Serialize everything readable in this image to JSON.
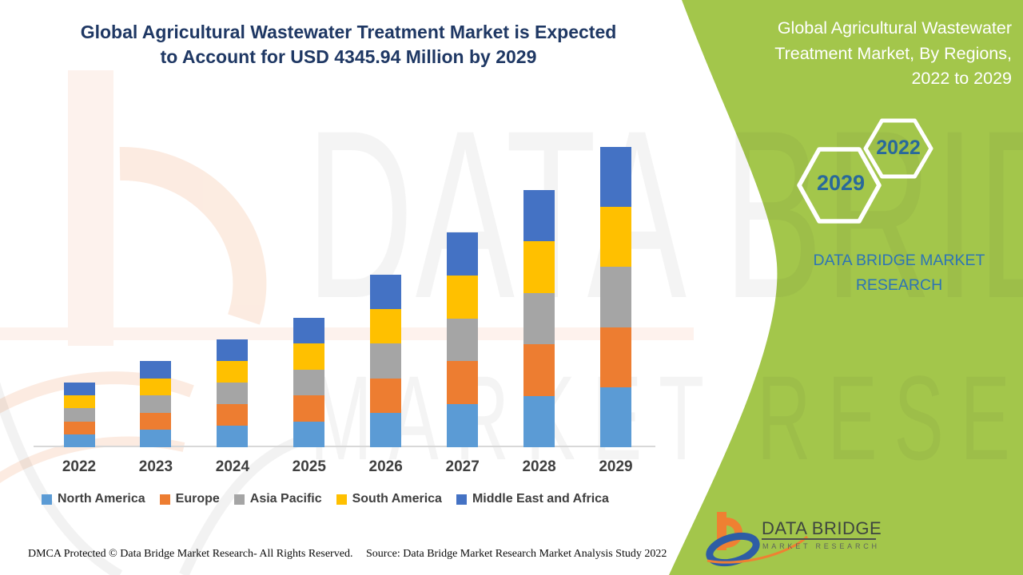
{
  "title": {
    "line1": "Global Agricultural Wastewater Treatment Market is Expected",
    "line2": "to Account for USD 4345.94 Million by 2029"
  },
  "watermark": {
    "line1": "DATA BRIDGE",
    "line2": "MARKET RESEARCH"
  },
  "side_panel": {
    "heading_line1": "Global Agricultural Wastewater",
    "heading_line2": "Treatment Market, By Regions,",
    "heading_line3": "2022 to 2029",
    "hexagon_years": [
      "2022",
      "2029"
    ],
    "brand_line1": "DATA BRIDGE MARKET",
    "brand_line2": "RESEARCH"
  },
  "logo_block": {
    "brand": "DATA BRIDGE",
    "sub": "MARKET RESEARCH"
  },
  "footer": {
    "left": "DMCA Protected © Data Bridge Market Research- All Rights Reserved.",
    "right": "Source: Data Bridge Market Research Market Analysis Study 2022"
  },
  "colors": {
    "green_panel": "#a3c64b",
    "title_text": "#1f3864",
    "hexagon_year_text": "#29699b",
    "panel_brand_text": "#2d74b5",
    "axis_line": "#d8d8d8",
    "label_text": "#3f3f3f"
  },
  "chart_data": {
    "type": "bar",
    "stacked": true,
    "title": "Global Agricultural Wastewater Treatment Market, By Regions, 2022 to 2029",
    "unit": "USD Million",
    "highlight_value": 4345.94,
    "categories": [
      "2022",
      "2023",
      "2024",
      "2025",
      "2026",
      "2027",
      "2028",
      "2029"
    ],
    "series": [
      {
        "name": "North America",
        "color": "#5B9BD5",
        "values": [
          187.2,
          249.7,
          312.1,
          374.5,
          499.3,
          621.8,
          744.3,
          869.2
        ]
      },
      {
        "name": "Europe",
        "color": "#ED7D31",
        "values": [
          187.2,
          249.7,
          312.1,
          374.5,
          499.3,
          621.8,
          744.3,
          869.2
        ]
      },
      {
        "name": "Asia Pacific",
        "color": "#A5A5A5",
        "values": [
          187.2,
          249.7,
          312.1,
          374.5,
          499.3,
          621.8,
          744.3,
          869.2
        ]
      },
      {
        "name": "South America",
        "color": "#FFC000",
        "values": [
          187.2,
          249.7,
          312.1,
          374.5,
          499.3,
          621.8,
          744.3,
          869.2
        ]
      },
      {
        "name": "Middle East and Africa",
        "color": "#4472C4",
        "values": [
          187.2,
          249.7,
          312.1,
          374.5,
          499.3,
          621.8,
          744.3,
          869.2
        ]
      }
    ],
    "totals_estimated": [
      936.2,
      1248.3,
      1560.4,
      1872.4,
      2496.6,
      3109.1,
      3721.7,
      4345.94
    ],
    "values_estimated_from_pixels": true,
    "ylim": [
      0,
      4500
    ],
    "grid": false,
    "y_axis_shown": false,
    "legend_position": "bottom"
  }
}
